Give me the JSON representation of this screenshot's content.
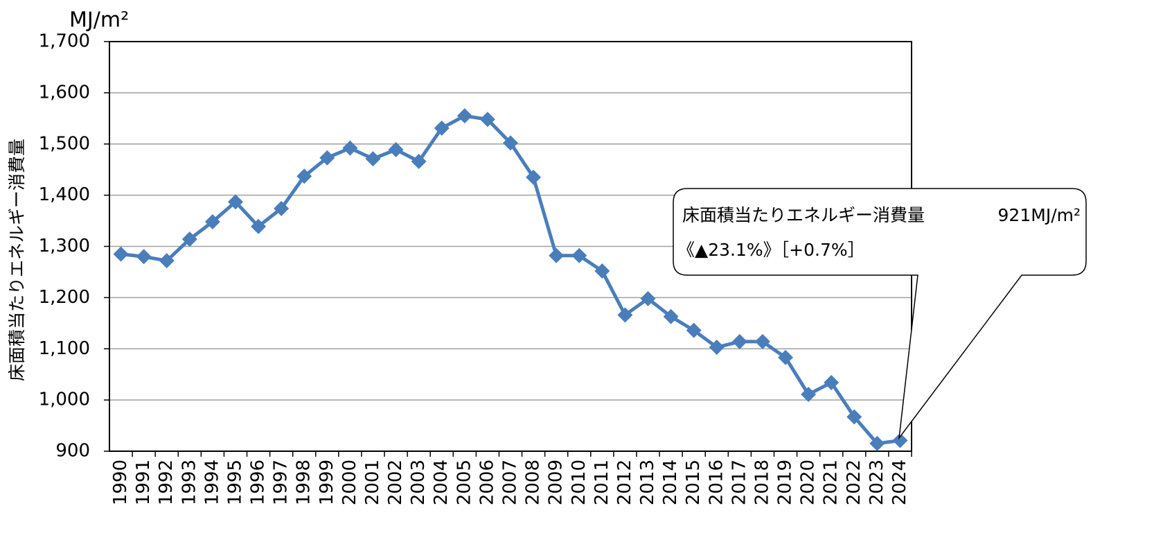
{
  "chart_data": {
    "type": "line",
    "y_axis_label": "床面積当たりエネルギー消費量",
    "unit_label": "MJ/m²",
    "categories": [
      "1990",
      "1991",
      "1992",
      "1993",
      "1994",
      "1995",
      "1996",
      "1997",
      "1998",
      "1999",
      "2000",
      "2001",
      "2002",
      "2003",
      "2004",
      "2005",
      "2006",
      "2007",
      "2008",
      "2009",
      "2010",
      "2011",
      "2012",
      "2013",
      "2014",
      "2015",
      "2016",
      "2017",
      "2018",
      "2019",
      "2020",
      "2021",
      "2022",
      "2023",
      "2024"
    ],
    "series": [
      {
        "name": "床面積当たりエネルギー消費量",
        "color": "#4a7ebb",
        "values": [
          1285,
          1280,
          1272,
          1314,
          1348,
          1387,
          1339,
          1374,
          1437,
          1473,
          1492,
          1471,
          1489,
          1466,
          1531,
          1555,
          1548,
          1502,
          1435,
          1282,
          1282,
          1252,
          1166,
          1198,
          1163,
          1136,
          1103,
          1114,
          1114,
          1083,
          1011,
          1034,
          967,
          915,
          921
        ]
      }
    ],
    "ylim": [
      900,
      1700
    ],
    "yticks": [
      {
        "value": 900,
        "label": "900"
      },
      {
        "value": 1000,
        "label": "1,000"
      },
      {
        "value": 1100,
        "label": "1,100"
      },
      {
        "value": 1200,
        "label": "1,200"
      },
      {
        "value": 1300,
        "label": "1,300"
      },
      {
        "value": 1400,
        "label": "1,400"
      },
      {
        "value": 1500,
        "label": "1,500"
      },
      {
        "value": 1600,
        "label": "1,600"
      },
      {
        "value": 1700,
        "label": "1,700"
      }
    ],
    "grid": true,
    "annotation": {
      "lines": [
        "床面積当たりエネルギー消費量",
        "921MJ/m²",
        "《▲23.1%》［+0.7%］"
      ]
    }
  }
}
